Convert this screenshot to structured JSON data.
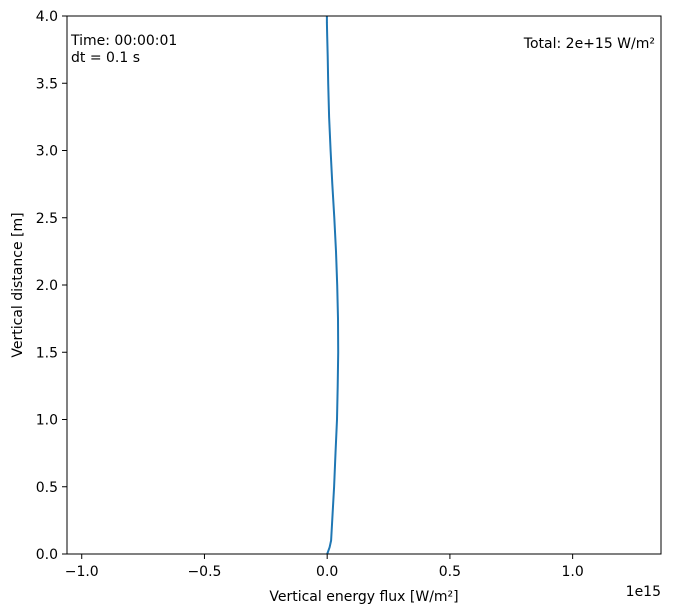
{
  "chart_data": {
    "type": "line",
    "xlabel": "Vertical energy flux [W/m²]",
    "ylabel": "Vertical distance [m]",
    "x_offset_label": "1e15",
    "xlim": [
      -1.06,
      1.36
    ],
    "ylim": [
      0,
      4
    ],
    "x_ticks": [
      -1.0,
      -0.5,
      0.0,
      0.5,
      1.0
    ],
    "x_tick_labels": [
      "−1.0",
      "−0.5",
      "0.0",
      "0.5",
      "1.0"
    ],
    "y_ticks": [
      0,
      0.5,
      1.0,
      1.5,
      2.0,
      2.5,
      3.0,
      3.5,
      4.0
    ],
    "y_tick_labels": [
      "0.0",
      "0.5",
      "1.0",
      "1.5",
      "2.0",
      "2.5",
      "3.0",
      "3.5",
      "4.0"
    ],
    "grid": false,
    "annotations": {
      "time": "Time: 00:00:01",
      "dt": "dt = 0.1 s",
      "total": "Total: 2e+15 W/m²"
    },
    "series": [
      {
        "color": "#1f77b4",
        "x": [
          0.0,
          0.01,
          0.016,
          0.022,
          0.028,
          0.034,
          0.04,
          0.043,
          0.045,
          0.044,
          0.041,
          0.036,
          0.029,
          0.021,
          0.014,
          0.008,
          0.004,
          0.002,
          0.0,
          -0.001,
          -0.001
        ],
        "y": [
          0,
          0.05,
          0.1,
          0.3,
          0.5,
          0.75,
          1.0,
          1.25,
          1.5,
          1.75,
          2.0,
          2.25,
          2.5,
          2.75,
          3.0,
          3.25,
          3.5,
          3.7,
          3.85,
          3.95,
          4.0
        ]
      }
    ]
  }
}
